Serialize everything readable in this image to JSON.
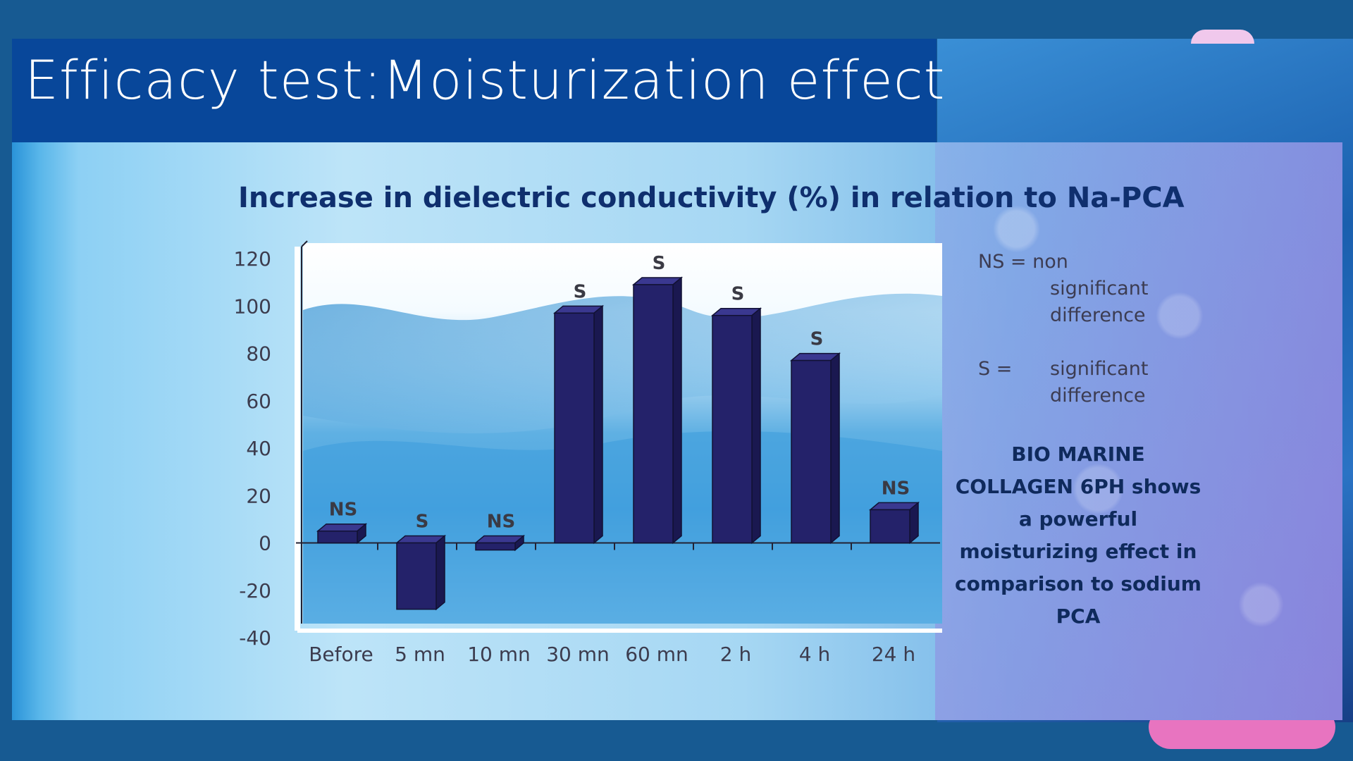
{
  "title": "Efficacy test:Moisturization effect",
  "chart_data": {
    "type": "bar",
    "title": "Increase in dielectric conductivity (%) in relation to Na-PCA",
    "categories": [
      "Before",
      "5 mn",
      "10 mn",
      "30 mn",
      "60 mn",
      "2 h",
      "4 h",
      "24 h"
    ],
    "values": [
      5,
      -28,
      -3,
      97,
      109,
      96,
      77,
      14
    ],
    "significance": [
      "NS",
      "S",
      "NS",
      "S",
      "S",
      "S",
      "S",
      "NS"
    ],
    "ylim": [
      -40,
      120
    ],
    "yticks": [
      120,
      100,
      80,
      60,
      40,
      20,
      0,
      -20,
      -40
    ],
    "bar_color": "#24226a",
    "grid": false
  },
  "legend": {
    "ns_key": "NS = non",
    "ns_desc_1": "significant",
    "ns_desc_2": "difference",
    "s_key": "S =",
    "s_desc_1": "significant",
    "s_desc_2": "difference"
  },
  "summary": "BIO MARINE COLLAGEN 6PH shows a powerful moisturizing effect in comparison to sodium PCA"
}
